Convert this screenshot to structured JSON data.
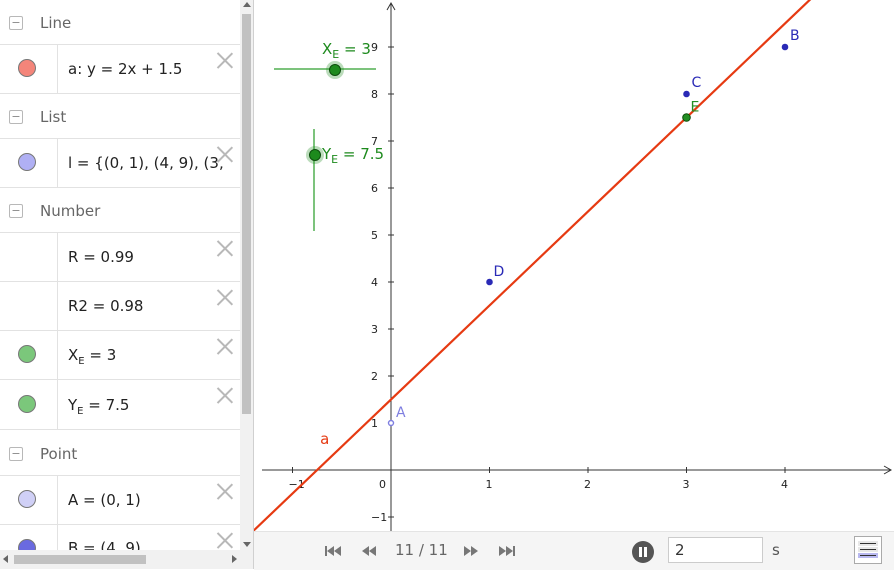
{
  "algebra": {
    "sections": [
      {
        "key": "line",
        "title": "Line"
      },
      {
        "key": "list",
        "title": "List"
      },
      {
        "key": "number",
        "title": "Number"
      },
      {
        "key": "point",
        "title": "Point"
      }
    ],
    "items": {
      "line_a": {
        "text": "a: y = 2x + 1.5",
        "color": "#f4857a"
      },
      "list_l": {
        "text": "l = {(0, 1), (4, 9), (3,",
        "color": "#b0b0f4"
      },
      "num_r": {
        "text": "R = 0.99"
      },
      "num_r2": {
        "text": "R2 = 0.98"
      },
      "num_xe": {
        "name": "X",
        "sub": "E",
        "value": " = 3",
        "color": "#7bc77b"
      },
      "num_ye": {
        "name": "Y",
        "sub": "E",
        "value": " = 7.5",
        "color": "#7bc77b"
      },
      "pt_a": {
        "text": "A = (0, 1)",
        "color": "#d0d0f6"
      },
      "pt_b": {
        "text": "B = (4, 9)",
        "color": "#6a6ae0"
      }
    }
  },
  "graph": {
    "x_ticks": [
      "−1",
      "0",
      "1",
      "2",
      "3",
      "4"
    ],
    "y_ticks": [
      "−1",
      "1",
      "2",
      "3",
      "4",
      "5",
      "6",
      "7",
      "8",
      "9"
    ],
    "line": {
      "label": "a",
      "slope": 2,
      "intercept": 1.5,
      "color": "#e63a12"
    },
    "points": [
      {
        "label": "A",
        "x": 0,
        "y": 1,
        "color": "#7e7ee0",
        "open": true
      },
      {
        "label": "B",
        "x": 4,
        "y": 9,
        "color": "#2a2ab6",
        "open": false
      },
      {
        "label": "C",
        "x": 3,
        "y": 8,
        "color": "#2a2ab6",
        "open": false
      },
      {
        "label": "D",
        "x": 1,
        "y": 4,
        "color": "#2a2ab6",
        "open": false
      },
      {
        "label": "E",
        "x": 3,
        "y": 7.5,
        "color": "#238e23",
        "open": false
      }
    ],
    "slider_x": {
      "name": "X",
      "sub": "E",
      "value": " = 3",
      "color": "#1d8a1d"
    },
    "slider_y": {
      "name": "Y",
      "sub": "E",
      "value": " = 7.5",
      "color": "#1d8a1d"
    }
  },
  "player": {
    "counter": "11 / 11",
    "speed_value": "2",
    "speed_unit": "s"
  }
}
